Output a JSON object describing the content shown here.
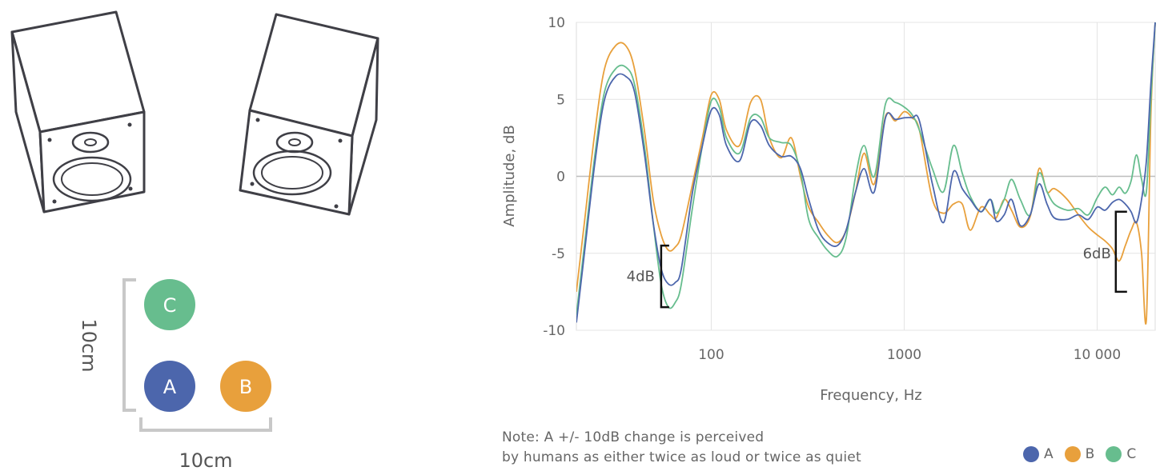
{
  "illustration": {
    "positions": [
      {
        "id": "C",
        "label": "C",
        "color": "#67bd8e"
      },
      {
        "id": "A",
        "label": "A",
        "color": "#4c66ac"
      },
      {
        "id": "B",
        "label": "B",
        "color": "#e8a03c"
      }
    ],
    "vertical_dimension": "10cm",
    "horizontal_dimension": "10cm"
  },
  "note": {
    "line1": "Note: A +/- 10dB change is perceived",
    "line2": "by humans as either twice as loud or twice as quiet"
  },
  "chart_data": {
    "type": "line",
    "xlabel": "Frequency, Hz",
    "ylabel": "Amplitude, dB",
    "x_scale": "log",
    "xlim": [
      20,
      20000
    ],
    "ylim": [
      -10,
      10
    ],
    "xticks": [
      {
        "value": 100,
        "label": "100"
      },
      {
        "value": 1000,
        "label": "1000"
      },
      {
        "value": 10000,
        "label": "10 000"
      }
    ],
    "yticks": [
      {
        "value": 10,
        "label": "10"
      },
      {
        "value": 5,
        "label": "5"
      },
      {
        "value": 0,
        "label": "0"
      },
      {
        "value": -5,
        "label": "-5"
      },
      {
        "value": -10,
        "label": "-10"
      }
    ],
    "grid": true,
    "legend_position": "bottom-right",
    "series": [
      {
        "name": "A",
        "color": "#4c66ac",
        "x": [
          20,
          22,
          25,
          28,
          32,
          36,
          40,
          45,
          50,
          55,
          60,
          65,
          70,
          80,
          90,
          100,
          110,
          120,
          140,
          160,
          180,
          200,
          230,
          260,
          290,
          320,
          360,
          400,
          450,
          500,
          560,
          620,
          700,
          800,
          900,
          1000,
          1100,
          1200,
          1400,
          1600,
          1800,
          2000,
          2200,
          2500,
          2800,
          3000,
          3300,
          3600,
          4000,
          4500,
          5000,
          5500,
          6000,
          7000,
          8000,
          9000,
          10000,
          11000,
          12000,
          13000,
          14000,
          15000,
          16000,
          17000,
          18000,
          19000,
          20000
        ],
        "values": [
          -9.5,
          -5,
          1,
          5,
          6.5,
          6.5,
          5.5,
          1.5,
          -3,
          -6,
          -7,
          -6.9,
          -6,
          -1,
          2,
          4.3,
          4,
          2,
          1,
          3.5,
          3.3,
          2,
          1.3,
          1.3,
          0.5,
          -1.5,
          -3.5,
          -4.3,
          -4.5,
          -3.5,
          -1,
          0.5,
          -1,
          3.8,
          3.7,
          3.8,
          3.8,
          3.6,
          -0.5,
          -3,
          0.3,
          -0.8,
          -1.5,
          -2.3,
          -1.5,
          -2.9,
          -2.5,
          -1.5,
          -3.2,
          -2.5,
          -0.5,
          -1.8,
          -2.7,
          -2.8,
          -2.5,
          -2.8,
          -2,
          -2.2,
          -1.7,
          -1.5,
          -1.8,
          -2.3,
          -3,
          -1.5,
          1,
          6,
          10
        ]
      },
      {
        "name": "B",
        "color": "#e8a03c",
        "x": [
          20,
          22,
          25,
          28,
          32,
          36,
          40,
          45,
          50,
          55,
          60,
          65,
          70,
          80,
          90,
          100,
          110,
          120,
          140,
          160,
          180,
          200,
          230,
          260,
          290,
          320,
          360,
          400,
          450,
          500,
          560,
          620,
          700,
          800,
          900,
          1000,
          1100,
          1200,
          1400,
          1600,
          1800,
          2000,
          2200,
          2500,
          2800,
          3000,
          3300,
          3600,
          4000,
          4500,
          5000,
          5500,
          6000,
          7000,
          8000,
          9000,
          10000,
          11000,
          12000,
          13000,
          14000,
          15000,
          16000,
          17000,
          18000,
          19000,
          20000
        ],
        "values": [
          -7.5,
          -3,
          3,
          7,
          8.5,
          8.5,
          7,
          3,
          -1.5,
          -3.8,
          -4.8,
          -4.6,
          -3.8,
          -0.5,
          2.5,
          5.3,
          5,
          3,
          2,
          4.8,
          5,
          2.5,
          1.2,
          2.5,
          0,
          -2,
          -3,
          -3.8,
          -4.3,
          -3.5,
          -1,
          1.5,
          -0.5,
          3.9,
          3.6,
          4.2,
          3.8,
          3,
          -1.5,
          -2.4,
          -1.8,
          -1.8,
          -3.5,
          -2,
          -2.5,
          -2.7,
          -1.5,
          -2.2,
          -3.3,
          -2.6,
          0.5,
          -1,
          -0.8,
          -1.5,
          -2.5,
          -3.3,
          -3.8,
          -4.2,
          -4.7,
          -5.5,
          -4.5,
          -3.5,
          -3,
          -5,
          -9.3,
          4,
          10
        ]
      },
      {
        "name": "C",
        "color": "#67bd8e",
        "x": [
          20,
          22,
          25,
          28,
          32,
          36,
          40,
          45,
          50,
          55,
          60,
          65,
          70,
          80,
          90,
          100,
          110,
          120,
          140,
          160,
          180,
          200,
          230,
          260,
          290,
          320,
          360,
          400,
          450,
          500,
          560,
          620,
          700,
          800,
          900,
          1000,
          1100,
          1200,
          1400,
          1600,
          1800,
          2000,
          2200,
          2500,
          2800,
          3000,
          3300,
          3600,
          4000,
          4500,
          5000,
          5500,
          6000,
          7000,
          8000,
          9000,
          10000,
          11000,
          12000,
          13000,
          14000,
          15000,
          16000,
          17000,
          18000,
          19000,
          20000
        ],
        "values": [
          -9,
          -4.5,
          1.5,
          5.5,
          7,
          7.1,
          6,
          2,
          -3,
          -7,
          -8.5,
          -8.2,
          -7,
          -2,
          2,
          4.9,
          4.5,
          2.5,
          1.5,
          3.8,
          3.8,
          2.5,
          2.2,
          2,
          0.3,
          -2.8,
          -4,
          -4.8,
          -5.2,
          -4,
          0,
          2,
          0,
          4.7,
          4.8,
          4.5,
          4,
          3,
          0.5,
          -1,
          2,
          0.2,
          -1.3,
          -2.3,
          -1.5,
          -2.4,
          -1.5,
          -0.2,
          -1.5,
          -2.5,
          0.2,
          -1,
          -1.8,
          -2.2,
          -2.1,
          -2.5,
          -1.4,
          -0.7,
          -1.2,
          -0.7,
          -1.1,
          -0.3,
          1.4,
          -0.2,
          -1,
          5,
          10
        ]
      }
    ],
    "annotations": [
      {
        "text": "4dB",
        "y_from": -8.5,
        "y_to": -4.5,
        "x": 55
      },
      {
        "text": "6dB",
        "y_from": -7.5,
        "y_to": -2.3,
        "x": 12500
      }
    ]
  }
}
